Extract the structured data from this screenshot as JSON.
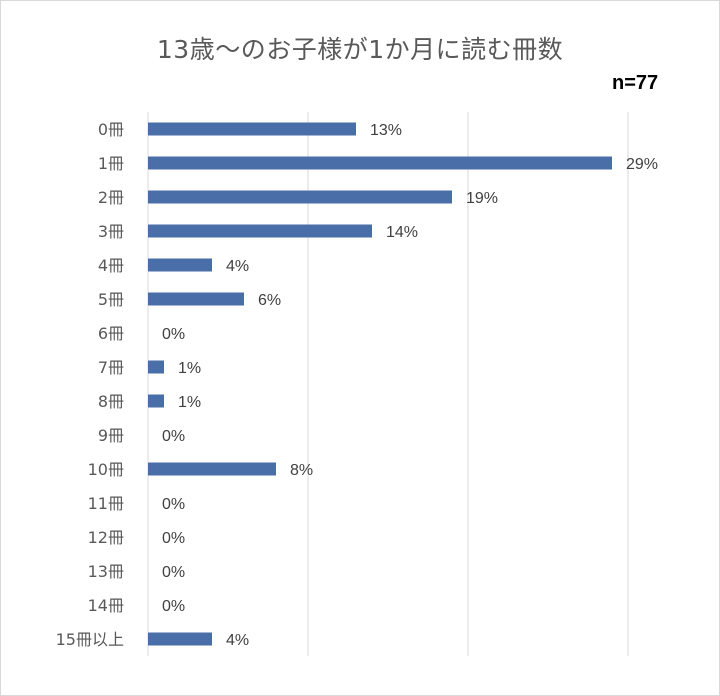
{
  "chart_data": {
    "type": "bar",
    "orientation": "horizontal",
    "title": "13歳～のお子様が1か月に読む冊数",
    "sample_size_label": "n=77",
    "categories": [
      "0冊",
      "1冊",
      "2冊",
      "3冊",
      "4冊",
      "5冊",
      "6冊",
      "7冊",
      "8冊",
      "9冊",
      "10冊",
      "11冊",
      "12冊",
      "13冊",
      "14冊",
      "15冊以上"
    ],
    "values": [
      13,
      29,
      19,
      14,
      4,
      6,
      0,
      1,
      1,
      0,
      8,
      0,
      0,
      0,
      0,
      4
    ],
    "value_labels": [
      "13%",
      "29%",
      "19%",
      "14%",
      "4%",
      "6%",
      "0%",
      "1%",
      "1%",
      "0%",
      "8%",
      "0%",
      "0%",
      "0%",
      "0%",
      "4%"
    ],
    "unit": "%",
    "xlim": [
      0,
      30
    ],
    "gridlines": [
      0,
      10,
      20,
      30
    ],
    "grid": true,
    "legend": "none",
    "bar_color": "#4a6ea8",
    "grid_color": "#d9d9d9"
  }
}
